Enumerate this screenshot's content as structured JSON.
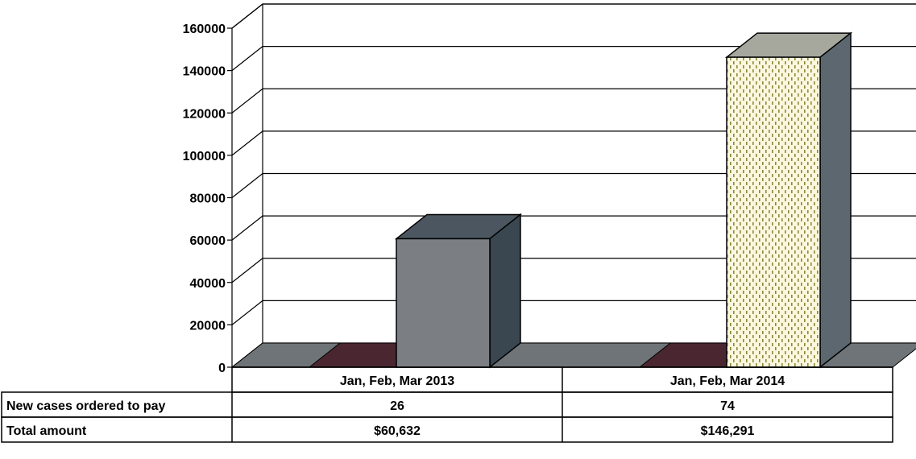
{
  "chart_data": {
    "type": "bar",
    "title": "",
    "xlabel": "",
    "ylabel": "",
    "ylim": [
      0,
      160000
    ],
    "yticks": [
      0,
      20000,
      40000,
      60000,
      80000,
      100000,
      120000,
      140000,
      160000
    ],
    "categories": [
      "Jan, Feb, Mar 2013",
      "Jan, Feb, Mar 2014"
    ],
    "values": [
      60632,
      146291
    ],
    "grid": true,
    "legend": "none",
    "bar_colors": [
      "#7b7f84",
      "#fbf7df"
    ],
    "bar_pattern_colors": [
      "",
      "#8a8a3a"
    ],
    "floor_colors": [
      "#6e7478",
      "#4a2630"
    ],
    "data_table": {
      "rows": [
        {
          "label": "New cases ordered to pay",
          "values": [
            "26",
            "74"
          ]
        },
        {
          "label": "Total amount",
          "values": [
            "$60,632",
            "$146,291"
          ]
        }
      ]
    }
  }
}
